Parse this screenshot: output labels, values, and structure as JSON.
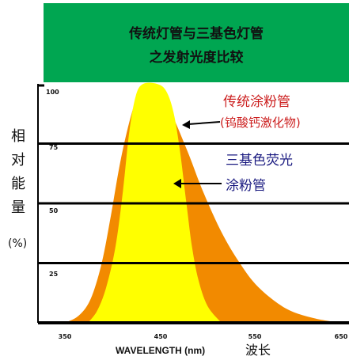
{
  "title_lines": [
    "传统灯管与三基色灯管",
    "之发射光度比较"
  ],
  "chart_data": {
    "type": "area",
    "x_ticks": [
      "350",
      "450",
      "550",
      "650"
    ],
    "y_ticks": [
      "100",
      "75",
      "50",
      "25"
    ],
    "xlim": [
      350,
      650
    ],
    "ylim": [
      0,
      100
    ],
    "xlabel_en": "WAVELENGTH (nm)",
    "xlabel_cn": "波长",
    "ylabel_chars": [
      "相",
      "对",
      "能",
      "量"
    ],
    "ylabel_unit": "(%)",
    "grid": "horizontal",
    "series": [
      {
        "label_lines": [
          "传统涂粉管",
          "(钨酸钙激化物)"
        ],
        "color": "#f28a00",
        "points": [
          [
            350,
            0
          ],
          [
            365,
            3
          ],
          [
            378,
            10
          ],
          [
            390,
            25
          ],
          [
            400,
            45
          ],
          [
            410,
            67
          ],
          [
            420,
            84
          ],
          [
            428,
            94
          ],
          [
            435,
            99
          ],
          [
            442,
            100
          ],
          [
            450,
            98
          ],
          [
            458,
            94
          ],
          [
            470,
            84
          ],
          [
            485,
            70
          ],
          [
            500,
            55
          ],
          [
            520,
            38
          ],
          [
            540,
            25
          ],
          [
            560,
            15
          ],
          [
            590,
            6
          ],
          [
            620,
            2
          ],
          [
            650,
            0
          ]
        ]
      },
      {
        "label_lines": [
          "三基色荧光",
          "涂粉管"
        ],
        "color": "#ffff00",
        "points": [
          [
            375,
            0
          ],
          [
            385,
            5
          ],
          [
            395,
            15
          ],
          [
            405,
            32
          ],
          [
            413,
            55
          ],
          [
            420,
            80
          ],
          [
            427,
            95
          ],
          [
            435,
            100
          ],
          [
            450,
            100
          ],
          [
            460,
            97
          ],
          [
            468,
            88
          ],
          [
            475,
            72
          ],
          [
            482,
            50
          ],
          [
            488,
            32
          ],
          [
            495,
            18
          ],
          [
            505,
            7
          ],
          [
            520,
            0
          ]
        ]
      }
    ]
  },
  "colors": {
    "header_bg": "#00a651",
    "axis": "#000000",
    "orange": "#f28a00",
    "yellow": "#ffff00",
    "red_text": "#cc1f1f",
    "blue_text": "#1a1a80"
  }
}
